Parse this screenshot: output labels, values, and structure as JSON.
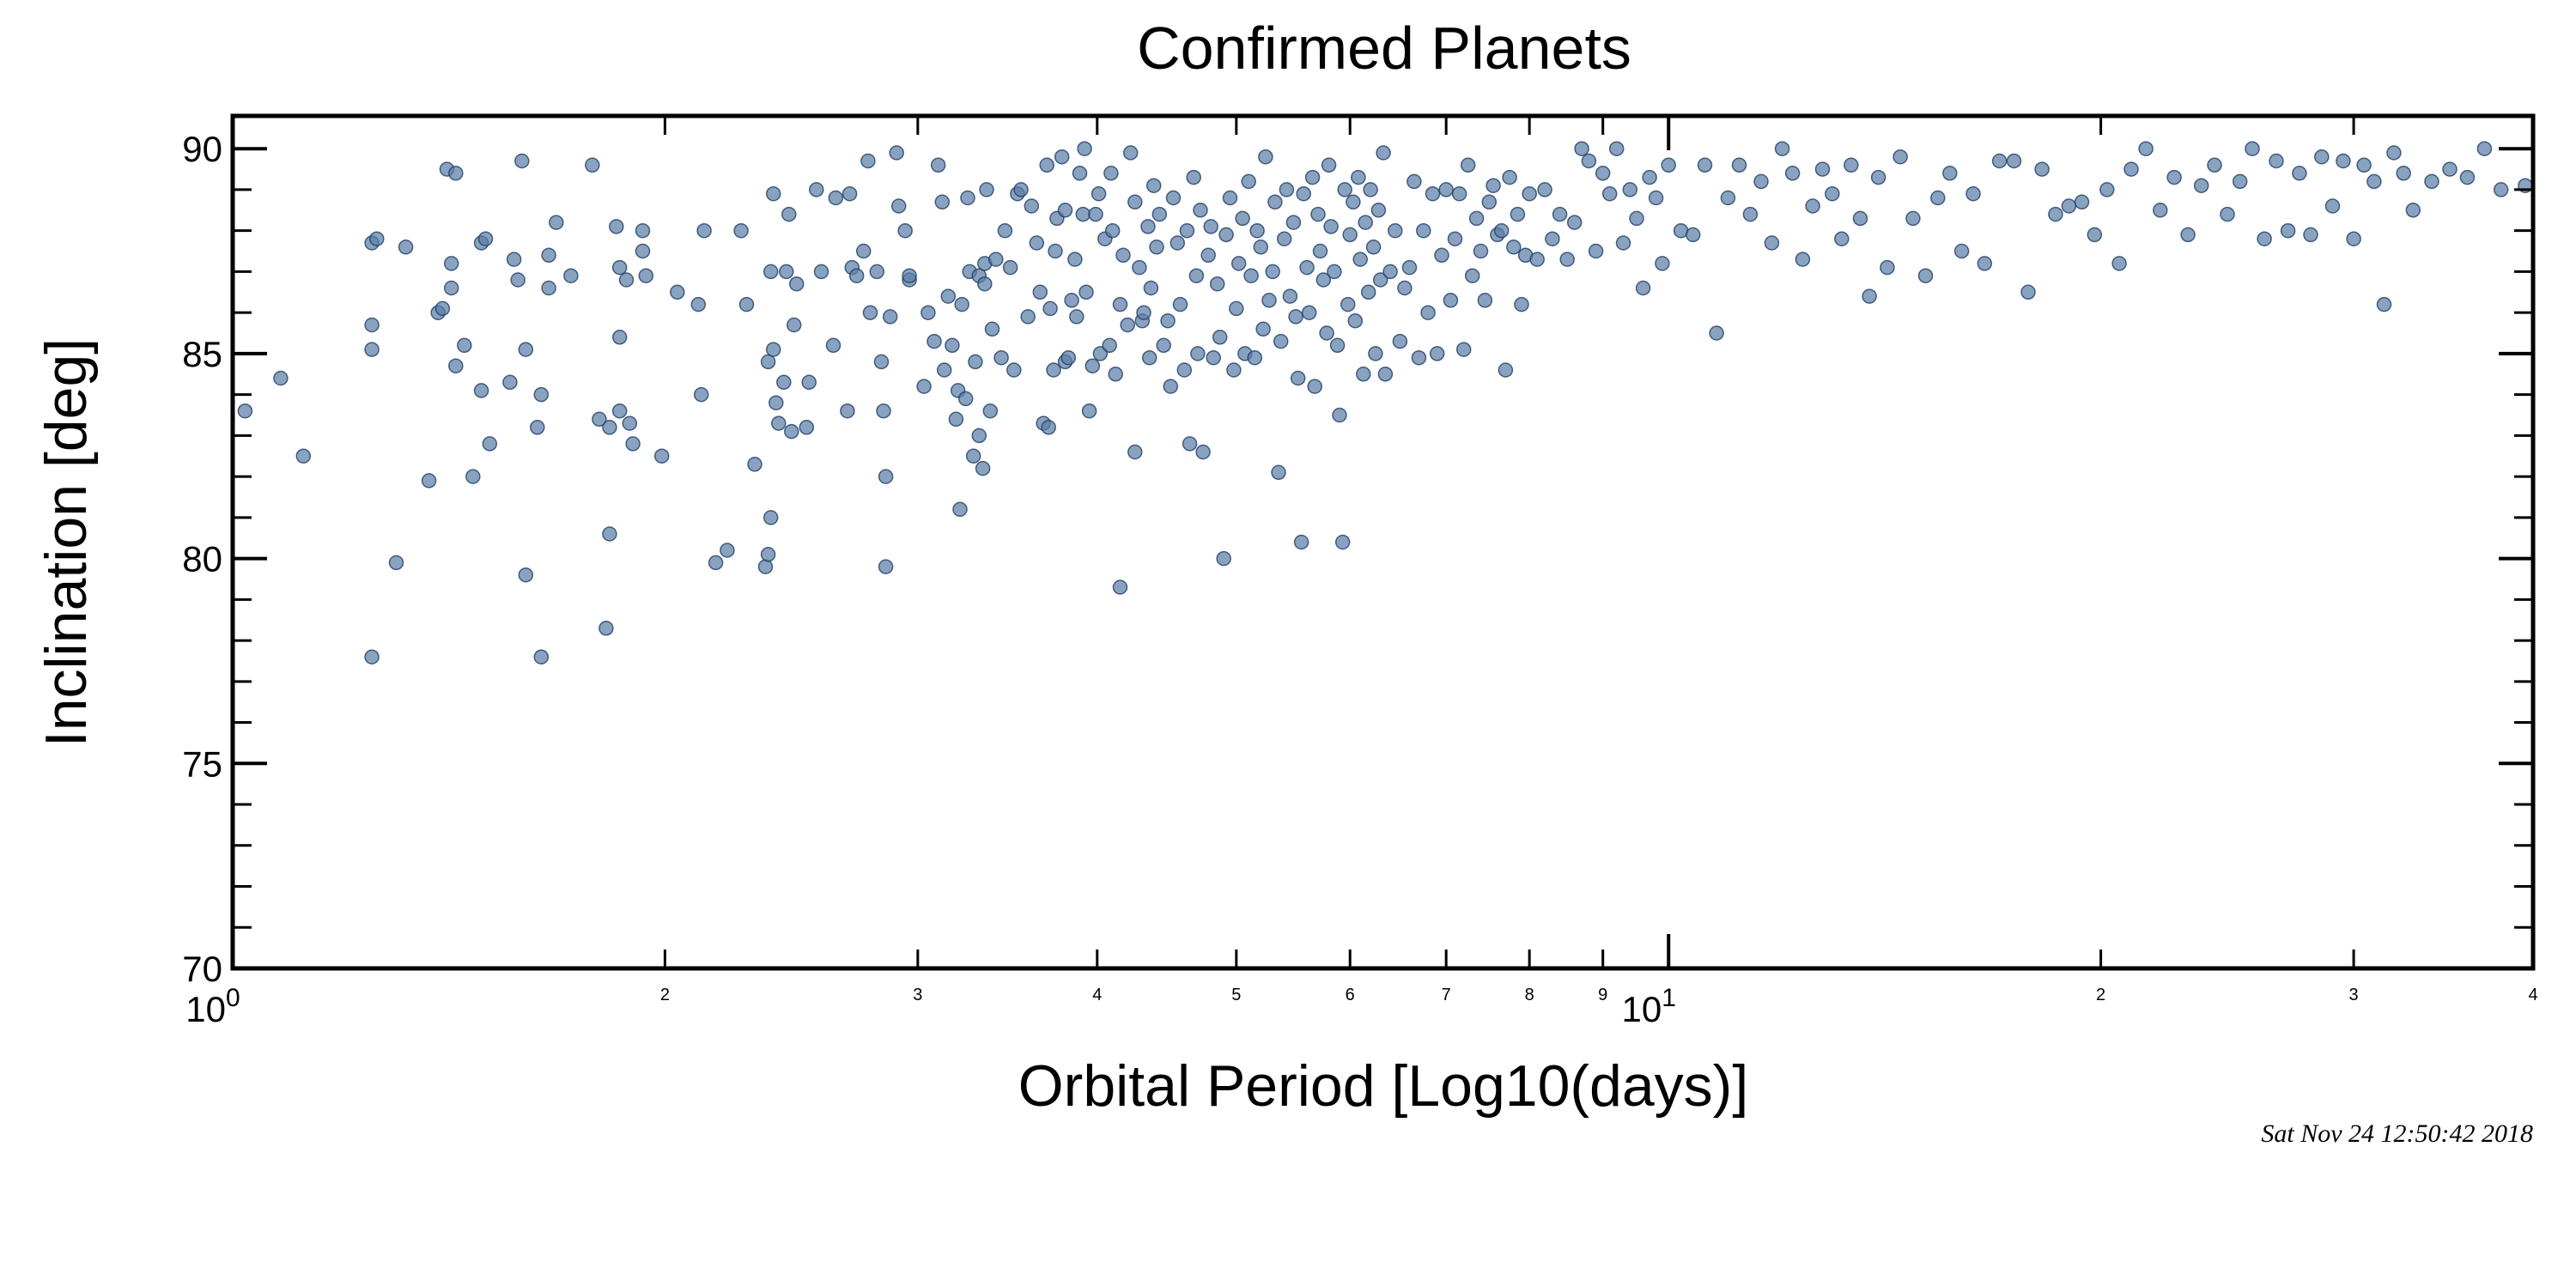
{
  "chart_data": {
    "type": "scatter",
    "title": "Confirmed Planets",
    "xlabel": "Orbital Period  [Log10(days)]",
    "ylabel": "Inclination [deg]",
    "xscale": "log",
    "xlim": [
      1,
      40
    ],
    "ylim": [
      70,
      90.8
    ],
    "yticks": [
      "70",
      "75",
      "80",
      "85",
      "90"
    ],
    "xticks_major": [
      {
        "base": "10",
        "exp": "0"
      },
      {
        "base": "10",
        "exp": "1"
      }
    ],
    "xticks_minor": [
      "2",
      "3",
      "4",
      "5",
      "6",
      "7",
      "8",
      "9",
      "2",
      "3",
      "4"
    ],
    "timestamp": "Sat Nov 24 12:50:42 2018",
    "marker_color": "#5b7ea6",
    "marker_edge": "#1f3f66",
    "grid": false,
    "points": [
      [
        1.02,
        83.6
      ],
      [
        1.08,
        84.4
      ],
      [
        1.12,
        82.5
      ],
      [
        1.25,
        77.6
      ],
      [
        1.25,
        85.1
      ],
      [
        1.25,
        85.7
      ],
      [
        1.25,
        87.7
      ],
      [
        1.26,
        87.8
      ],
      [
        1.3,
        79.9
      ],
      [
        1.32,
        87.6
      ],
      [
        1.37,
        81.9
      ],
      [
        1.39,
        86.0
      ],
      [
        1.4,
        86.1
      ],
      [
        1.41,
        89.5
      ],
      [
        1.42,
        87.2
      ],
      [
        1.42,
        86.6
      ],
      [
        1.43,
        89.4
      ],
      [
        1.43,
        84.7
      ],
      [
        1.45,
        85.2
      ],
      [
        1.47,
        82.0
      ],
      [
        1.49,
        84.1
      ],
      [
        1.49,
        87.7
      ],
      [
        1.5,
        87.8
      ],
      [
        1.51,
        82.8
      ],
      [
        1.56,
        84.3
      ],
      [
        1.57,
        87.3
      ],
      [
        1.58,
        86.8
      ],
      [
        1.59,
        89.7
      ],
      [
        1.6,
        85.1
      ],
      [
        1.6,
        79.6
      ],
      [
        1.63,
        83.2
      ],
      [
        1.64,
        77.6
      ],
      [
        1.64,
        84.0
      ],
      [
        1.66,
        87.4
      ],
      [
        1.66,
        86.6
      ],
      [
        1.68,
        88.2
      ],
      [
        1.72,
        86.9
      ],
      [
        1.78,
        89.6
      ],
      [
        1.8,
        83.4
      ],
      [
        1.82,
        78.3
      ],
      [
        1.83,
        80.6
      ],
      [
        1.83,
        83.2
      ],
      [
        1.85,
        88.1
      ],
      [
        1.86,
        87.1
      ],
      [
        1.86,
        85.4
      ],
      [
        1.86,
        83.6
      ],
      [
        1.88,
        86.8
      ],
      [
        1.89,
        83.3
      ],
      [
        1.9,
        82.8
      ],
      [
        1.93,
        88.0
      ],
      [
        1.93,
        87.5
      ],
      [
        1.94,
        86.9
      ],
      [
        1.99,
        82.5
      ],
      [
        2.04,
        86.5
      ],
      [
        2.11,
        86.2
      ],
      [
        2.12,
        84.0
      ],
      [
        2.13,
        88.0
      ],
      [
        2.17,
        79.9
      ],
      [
        2.21,
        80.2
      ],
      [
        2.26,
        88.0
      ],
      [
        2.28,
        86.2
      ],
      [
        2.31,
        82.3
      ],
      [
        2.35,
        79.8
      ],
      [
        2.36,
        80.1
      ],
      [
        2.36,
        84.8
      ],
      [
        2.37,
        81.0
      ],
      [
        2.37,
        87.0
      ],
      [
        2.38,
        88.9
      ],
      [
        2.38,
        85.1
      ],
      [
        2.39,
        83.8
      ],
      [
        2.4,
        83.3
      ],
      [
        2.42,
        84.3
      ],
      [
        2.43,
        87.0
      ],
      [
        2.44,
        88.4
      ],
      [
        2.45,
        83.1
      ],
      [
        2.46,
        85.7
      ],
      [
        2.47,
        86.7
      ],
      [
        2.51,
        83.2
      ],
      [
        2.52,
        84.3
      ],
      [
        2.55,
        89.0
      ],
      [
        2.57,
        87.0
      ],
      [
        2.62,
        85.2
      ],
      [
        2.63,
        88.8
      ],
      [
        2.68,
        83.6
      ],
      [
        2.69,
        88.9
      ],
      [
        2.7,
        87.1
      ],
      [
        2.72,
        86.9
      ],
      [
        2.75,
        87.5
      ],
      [
        2.77,
        89.7
      ],
      [
        2.78,
        86.0
      ],
      [
        2.81,
        87.0
      ],
      [
        2.83,
        84.8
      ],
      [
        2.84,
        83.6
      ],
      [
        2.85,
        82.0
      ],
      [
        2.85,
        79.8
      ],
      [
        2.87,
        85.9
      ],
      [
        2.9,
        89.9
      ],
      [
        2.91,
        88.6
      ],
      [
        2.94,
        88.0
      ],
      [
        2.96,
        86.8
      ],
      [
        2.96,
        86.9
      ],
      [
        3.03,
        84.2
      ],
      [
        3.05,
        86.0
      ],
      [
        3.08,
        85.3
      ],
      [
        3.1,
        89.6
      ],
      [
        3.12,
        88.7
      ],
      [
        3.13,
        84.6
      ],
      [
        3.15,
        86.4
      ],
      [
        3.17,
        85.2
      ],
      [
        3.19,
        83.4
      ],
      [
        3.2,
        84.1
      ],
      [
        3.21,
        81.2
      ],
      [
        3.22,
        86.2
      ],
      [
        3.24,
        83.9
      ],
      [
        3.25,
        88.8
      ],
      [
        3.26,
        87.0
      ],
      [
        3.28,
        82.5
      ],
      [
        3.29,
        84.8
      ],
      [
        3.31,
        83.0
      ],
      [
        3.31,
        86.9
      ],
      [
        3.33,
        82.2
      ],
      [
        3.34,
        86.7
      ],
      [
        3.34,
        87.2
      ],
      [
        3.35,
        89.0
      ],
      [
        3.37,
        83.6
      ],
      [
        3.38,
        85.6
      ],
      [
        3.4,
        87.3
      ],
      [
        3.43,
        84.9
      ],
      [
        3.45,
        88.0
      ],
      [
        3.48,
        87.1
      ],
      [
        3.5,
        84.6
      ],
      [
        3.52,
        88.9
      ],
      [
        3.54,
        89.0
      ],
      [
        3.58,
        85.9
      ],
      [
        3.6,
        88.6
      ],
      [
        3.63,
        87.7
      ],
      [
        3.65,
        86.5
      ],
      [
        3.67,
        83.3
      ],
      [
        3.69,
        89.6
      ],
      [
        3.7,
        83.2
      ],
      [
        3.71,
        86.1
      ],
      [
        3.73,
        84.6
      ],
      [
        3.74,
        87.5
      ],
      [
        3.75,
        88.3
      ],
      [
        3.78,
        89.8
      ],
      [
        3.8,
        84.8
      ],
      [
        3.8,
        88.5
      ],
      [
        3.82,
        84.9
      ],
      [
        3.84,
        86.3
      ],
      [
        3.86,
        87.3
      ],
      [
        3.87,
        85.9
      ],
      [
        3.89,
        89.4
      ],
      [
        3.91,
        88.4
      ],
      [
        3.92,
        90.0
      ],
      [
        3.93,
        86.5
      ],
      [
        3.95,
        83.6
      ],
      [
        3.97,
        84.7
      ],
      [
        3.99,
        88.4
      ],
      [
        4.01,
        88.9
      ],
      [
        4.02,
        85.0
      ],
      [
        4.05,
        87.8
      ],
      [
        4.08,
        85.2
      ],
      [
        4.09,
        89.4
      ],
      [
        4.1,
        88.0
      ],
      [
        4.12,
        84.5
      ],
      [
        4.15,
        79.3
      ],
      [
        4.15,
        86.2
      ],
      [
        4.17,
        87.4
      ],
      [
        4.2,
        85.7
      ],
      [
        4.22,
        89.9
      ],
      [
        4.25,
        82.6
      ],
      [
        4.25,
        88.7
      ],
      [
        4.28,
        87.1
      ],
      [
        4.3,
        85.8
      ],
      [
        4.31,
        86.0
      ],
      [
        4.34,
        88.1
      ],
      [
        4.35,
        84.9
      ],
      [
        4.36,
        86.6
      ],
      [
        4.38,
        89.1
      ],
      [
        4.4,
        87.6
      ],
      [
        4.42,
        88.4
      ],
      [
        4.45,
        85.2
      ],
      [
        4.48,
        85.8
      ],
      [
        4.5,
        84.2
      ],
      [
        4.52,
        88.8
      ],
      [
        4.55,
        87.7
      ],
      [
        4.57,
        86.2
      ],
      [
        4.6,
        84.6
      ],
      [
        4.62,
        88.0
      ],
      [
        4.64,
        82.8
      ],
      [
        4.67,
        89.3
      ],
      [
        4.69,
        86.9
      ],
      [
        4.7,
        85.0
      ],
      [
        4.72,
        88.5
      ],
      [
        4.74,
        82.6
      ],
      [
        4.78,
        87.4
      ],
      [
        4.8,
        88.1
      ],
      [
        4.82,
        84.9
      ],
      [
        4.85,
        86.7
      ],
      [
        4.87,
        85.4
      ],
      [
        4.9,
        80.0
      ],
      [
        4.92,
        87.9
      ],
      [
        4.95,
        88.8
      ],
      [
        4.98,
        84.6
      ],
      [
        5.0,
        86.1
      ],
      [
        5.02,
        87.2
      ],
      [
        5.05,
        88.3
      ],
      [
        5.07,
        85.0
      ],
      [
        5.1,
        89.2
      ],
      [
        5.12,
        86.9
      ],
      [
        5.15,
        84.9
      ],
      [
        5.17,
        88.0
      ],
      [
        5.2,
        87.6
      ],
      [
        5.22,
        85.6
      ],
      [
        5.24,
        89.8
      ],
      [
        5.27,
        86.3
      ],
      [
        5.3,
        87.0
      ],
      [
        5.32,
        88.7
      ],
      [
        5.35,
        82.1
      ],
      [
        5.37,
        85.3
      ],
      [
        5.4,
        87.8
      ],
      [
        5.42,
        89.0
      ],
      [
        5.45,
        86.4
      ],
      [
        5.48,
        88.2
      ],
      [
        5.5,
        85.9
      ],
      [
        5.52,
        84.4
      ],
      [
        5.55,
        80.4
      ],
      [
        5.57,
        88.9
      ],
      [
        5.6,
        87.1
      ],
      [
        5.62,
        86.0
      ],
      [
        5.65,
        89.3
      ],
      [
        5.67,
        84.2
      ],
      [
        5.7,
        88.4
      ],
      [
        5.72,
        87.5
      ],
      [
        5.75,
        86.8
      ],
      [
        5.78,
        85.5
      ],
      [
        5.8,
        89.6
      ],
      [
        5.82,
        88.1
      ],
      [
        5.85,
        87.0
      ],
      [
        5.88,
        85.2
      ],
      [
        5.9,
        83.5
      ],
      [
        5.93,
        80.4
      ],
      [
        5.95,
        89.0
      ],
      [
        5.98,
        86.2
      ],
      [
        6.0,
        87.9
      ],
      [
        6.03,
        88.7
      ],
      [
        6.05,
        85.8
      ],
      [
        6.08,
        89.3
      ],
      [
        6.1,
        87.3
      ],
      [
        6.13,
        84.5
      ],
      [
        6.15,
        88.2
      ],
      [
        6.18,
        86.5
      ],
      [
        6.2,
        89.0
      ],
      [
        6.23,
        87.6
      ],
      [
        6.25,
        85.0
      ],
      [
        6.28,
        88.5
      ],
      [
        6.3,
        86.8
      ],
      [
        6.33,
        89.9
      ],
      [
        6.35,
        84.5
      ],
      [
        6.4,
        87.0
      ],
      [
        6.45,
        88.0
      ],
      [
        6.5,
        85.3
      ],
      [
        6.55,
        86.6
      ],
      [
        6.6,
        87.1
      ],
      [
        6.65,
        89.2
      ],
      [
        6.7,
        84.9
      ],
      [
        6.75,
        88.0
      ],
      [
        6.8,
        86.0
      ],
      [
        6.85,
        88.9
      ],
      [
        6.9,
        85.0
      ],
      [
        6.95,
        87.4
      ],
      [
        7.0,
        89.0
      ],
      [
        7.05,
        86.3
      ],
      [
        7.1,
        87.8
      ],
      [
        7.15,
        88.9
      ],
      [
        7.2,
        85.1
      ],
      [
        7.25,
        89.6
      ],
      [
        7.3,
        86.9
      ],
      [
        7.35,
        88.3
      ],
      [
        7.4,
        87.5
      ],
      [
        7.45,
        86.3
      ],
      [
        7.5,
        88.7
      ],
      [
        7.55,
        89.1
      ],
      [
        7.6,
        87.9
      ],
      [
        7.65,
        88.0
      ],
      [
        7.7,
        84.6
      ],
      [
        7.75,
        89.3
      ],
      [
        7.8,
        87.6
      ],
      [
        7.85,
        88.4
      ],
      [
        7.9,
        86.2
      ],
      [
        7.95,
        87.4
      ],
      [
        8.0,
        88.9
      ],
      [
        8.1,
        87.3
      ],
      [
        8.2,
        89.0
      ],
      [
        8.3,
        87.8
      ],
      [
        8.4,
        88.4
      ],
      [
        8.5,
        87.3
      ],
      [
        8.6,
        88.2
      ],
      [
        8.7,
        90.0
      ],
      [
        8.8,
        89.7
      ],
      [
        8.9,
        87.5
      ],
      [
        9.0,
        89.4
      ],
      [
        9.1,
        88.9
      ],
      [
        9.2,
        90.0
      ],
      [
        9.3,
        87.7
      ],
      [
        9.4,
        89.0
      ],
      [
        9.5,
        88.3
      ],
      [
        9.6,
        86.6
      ],
      [
        9.7,
        89.3
      ],
      [
        9.8,
        88.8
      ],
      [
        9.9,
        87.2
      ],
      [
        10.0,
        89.6
      ],
      [
        10.2,
        88.0
      ],
      [
        10.4,
        87.9
      ],
      [
        10.6,
        89.6
      ],
      [
        10.8,
        85.5
      ],
      [
        11.0,
        88.8
      ],
      [
        11.2,
        89.6
      ],
      [
        11.4,
        88.4
      ],
      [
        11.6,
        89.2
      ],
      [
        11.8,
        87.7
      ],
      [
        12.0,
        90.0
      ],
      [
        12.2,
        89.4
      ],
      [
        12.4,
        87.3
      ],
      [
        12.6,
        88.6
      ],
      [
        12.8,
        89.5
      ],
      [
        13.0,
        88.9
      ],
      [
        13.2,
        87.8
      ],
      [
        13.4,
        89.6
      ],
      [
        13.6,
        88.3
      ],
      [
        13.8,
        86.4
      ],
      [
        14.0,
        89.3
      ],
      [
        14.2,
        87.1
      ],
      [
        14.5,
        89.8
      ],
      [
        14.8,
        88.3
      ],
      [
        15.1,
        86.9
      ],
      [
        15.4,
        88.8
      ],
      [
        15.7,
        89.4
      ],
      [
        16.0,
        87.5
      ],
      [
        16.3,
        88.9
      ],
      [
        16.6,
        87.2
      ],
      [
        17.0,
        89.7
      ],
      [
        17.4,
        89.7
      ],
      [
        17.8,
        86.5
      ],
      [
        18.2,
        89.5
      ],
      [
        18.6,
        88.4
      ],
      [
        19.0,
        88.6
      ],
      [
        19.4,
        88.7
      ],
      [
        19.8,
        87.9
      ],
      [
        20.2,
        89.0
      ],
      [
        20.6,
        87.2
      ],
      [
        21.0,
        89.5
      ],
      [
        21.5,
        90.0
      ],
      [
        22.0,
        88.5
      ],
      [
        22.5,
        89.3
      ],
      [
        23.0,
        87.9
      ],
      [
        23.5,
        89.1
      ],
      [
        24.0,
        89.6
      ],
      [
        24.5,
        88.4
      ],
      [
        25.0,
        89.2
      ],
      [
        25.5,
        90.0
      ],
      [
        26.0,
        87.8
      ],
      [
        26.5,
        89.7
      ],
      [
        27.0,
        88.0
      ],
      [
        27.5,
        89.4
      ],
      [
        28.0,
        87.9
      ],
      [
        28.5,
        89.8
      ],
      [
        29.0,
        88.6
      ],
      [
        29.5,
        89.7
      ],
      [
        30.0,
        87.8
      ],
      [
        30.5,
        89.6
      ],
      [
        31.0,
        89.2
      ],
      [
        31.5,
        86.2
      ],
      [
        32.0,
        89.9
      ],
      [
        32.5,
        89.4
      ],
      [
        33.0,
        88.5
      ],
      [
        34.0,
        89.2
      ],
      [
        35.0,
        89.5
      ],
      [
        36.0,
        89.3
      ],
      [
        37.0,
        90.0
      ],
      [
        38.0,
        89.0
      ],
      [
        39.5,
        89.1
      ]
    ]
  }
}
